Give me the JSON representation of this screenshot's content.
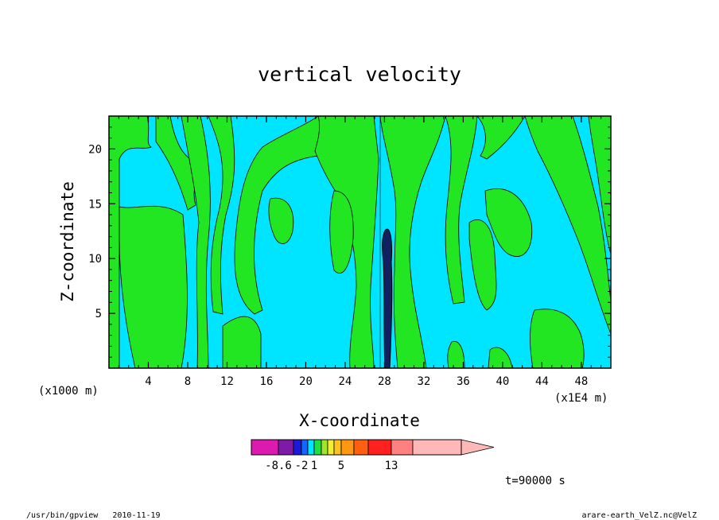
{
  "chart_data": {
    "type": "heatmap",
    "subtype": "filled-contour",
    "title": "vertical velocity",
    "xlabel": "X-coordinate",
    "ylabel": "Z-coordinate",
    "x_unit_label": "(x1E4 m)",
    "y_unit_label": "(x1000 m)",
    "xlim": [
      0,
      51
    ],
    "ylim": [
      0,
      23
    ],
    "x_ticks": [
      "4",
      "8",
      "12",
      "16",
      "20",
      "24",
      "28",
      "32",
      "36",
      "40",
      "44",
      "48"
    ],
    "x_tick_values": [
      4,
      8,
      12,
      16,
      20,
      24,
      28,
      32,
      36,
      40,
      44,
      48
    ],
    "y_ticks": [
      "5",
      "10",
      "15",
      "20"
    ],
    "y_tick_values": [
      5,
      10,
      15,
      20
    ],
    "colorbar": {
      "tick_labels": [
        "-8.6",
        "-2",
        "1",
        "5",
        "13"
      ],
      "tick_values": [
        -8.6,
        -2,
        1,
        5,
        13
      ],
      "colors": [
        "#dd1ab0",
        "#7f1aa8",
        "#1a1ad8",
        "#1466ff",
        "#00e5ff",
        "#22dd44",
        "#9ee62a",
        "#f0f030",
        "#ffc020",
        "#ff9810",
        "#ff6010",
        "#ff2020",
        "#ff8080",
        "#ffb8b8"
      ],
      "extend": "max"
    },
    "dominant_levels": {
      "negative_fill": "#00e5ff",
      "positive_fill": "#22e622"
    },
    "annotation_time": "t=90000 s",
    "grid": false
  },
  "footer": {
    "left": "/usr/bin/gpview   2010-11-19",
    "right": "arare-earth_VelZ.nc@VelZ"
  }
}
